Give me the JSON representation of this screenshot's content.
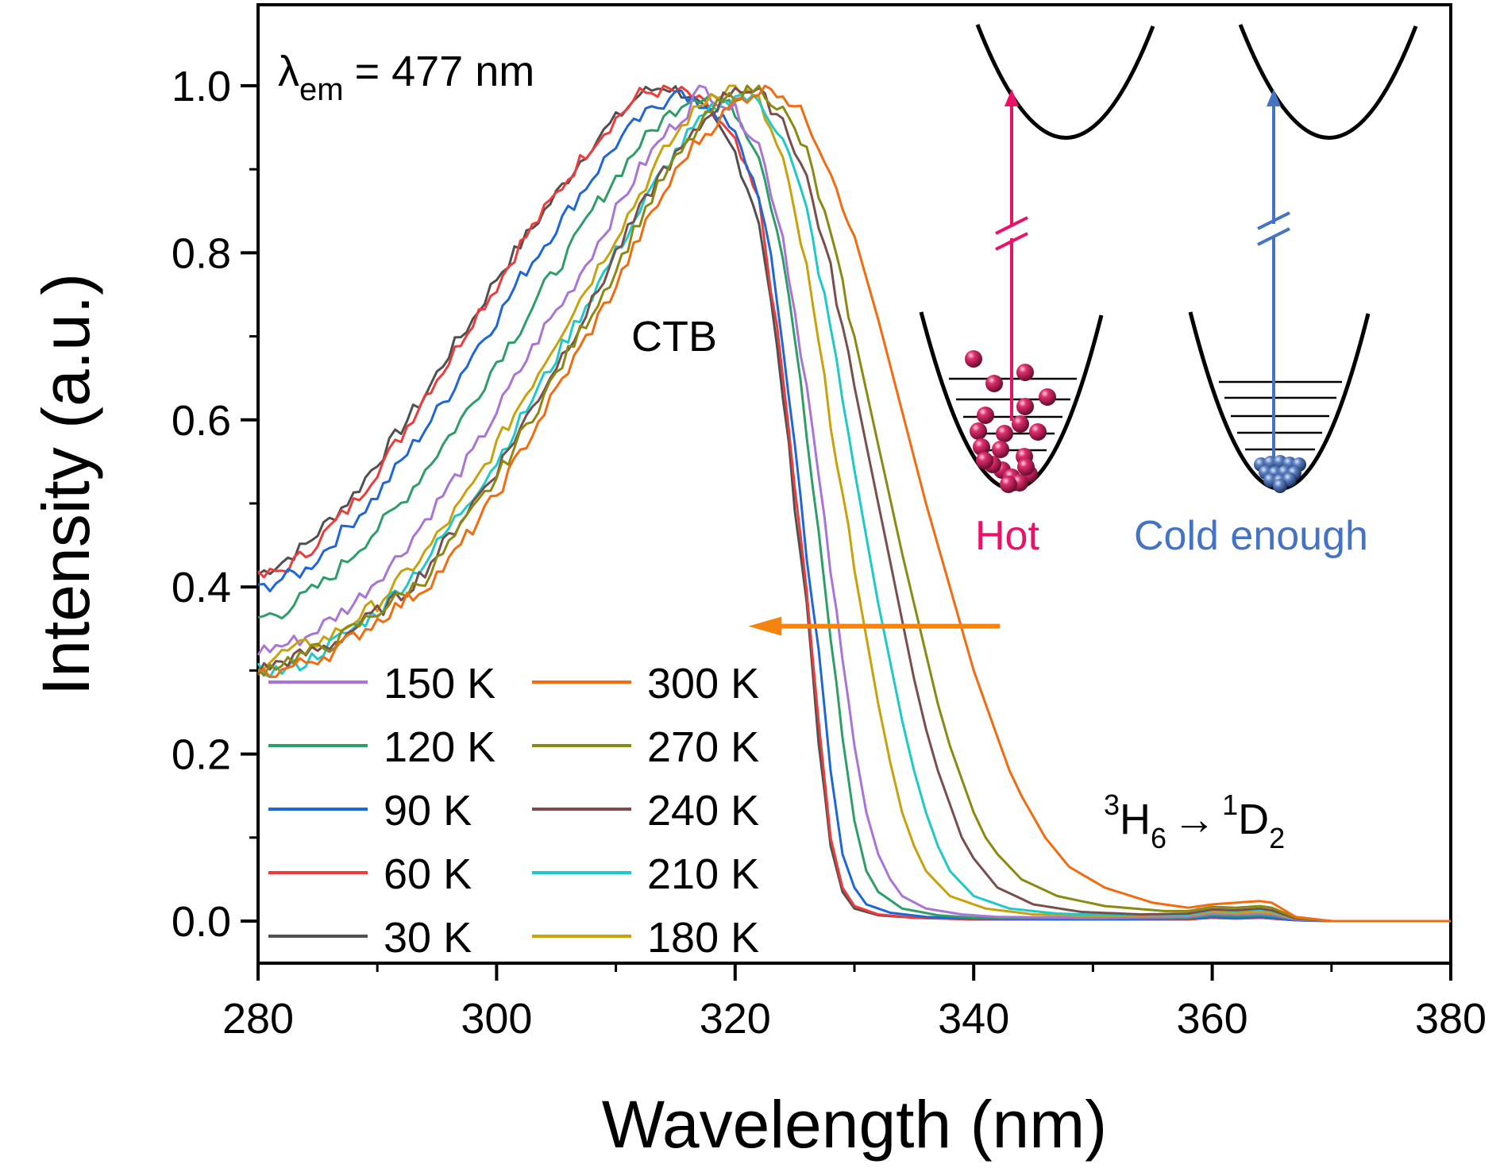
{
  "chart_data": {
    "type": "line",
    "title": "",
    "xlabel": "Wavelength (nm)",
    "ylabel": "Intensity (a.u.)",
    "xlim": [
      280,
      380
    ],
    "ylim": [
      -0.05,
      1.1
    ],
    "xticks": [
      280,
      300,
      320,
      340,
      360,
      380
    ],
    "xtick_labels": [
      "280",
      "300",
      "320",
      "340",
      "360",
      "380"
    ],
    "xminor_ticks": [
      290,
      310,
      330,
      350,
      370
    ],
    "yticks": [
      0.0,
      0.2,
      0.4,
      0.6,
      0.8,
      1.0
    ],
    "ytick_labels": [
      "0.0",
      "0.2",
      "0.4",
      "0.6",
      "0.8",
      "1.0"
    ],
    "yminor_ticks": [
      0.1,
      0.3,
      0.5,
      0.7,
      0.9
    ],
    "grid": false,
    "legend": {
      "placement": "bottom-left",
      "columns": 2,
      "order": [
        "150 K",
        "120 K",
        "90 K",
        "60 K",
        "30 K",
        "300 K",
        "270 K",
        "240 K",
        "210 K",
        "180 K"
      ]
    },
    "annotations": {
      "excitation": {
        "symbol": "λ",
        "subscript": "em",
        "text": "= 477 nm"
      },
      "band": "CTB",
      "transition": {
        "left_sup": "3",
        "left": "H",
        "left_sub": "6",
        "arrow": "→",
        "right_sup": "1",
        "right": "D",
        "right_sub": "2"
      },
      "shift_arrow": {
        "from_x": 342.2,
        "to_x": 321.1,
        "y": 0.353,
        "color": "#F5830F",
        "meaning": "blue-shift on cooling"
      }
    },
    "inset": {
      "hot_label": "Hot",
      "cold_label": "Cold enough",
      "hot_color": "#EC1167",
      "cold_color": "#4472C4"
    },
    "series": [
      {
        "name": "30 K",
        "color": "#505050",
        "x": [
          280,
          282,
          284,
          286,
          288,
          290,
          292,
          294,
          296,
          298,
          300,
          302,
          304,
          306,
          308,
          310,
          312,
          314,
          316,
          318,
          320,
          322,
          323,
          324,
          325,
          326,
          327,
          328,
          329,
          330,
          332,
          335,
          340,
          350,
          358,
          360,
          362,
          364,
          365,
          367,
          370,
          380
        ],
        "y": [
          0.415,
          0.43,
          0.45,
          0.48,
          0.51,
          0.55,
          0.59,
          0.63,
          0.68,
          0.72,
          0.77,
          0.81,
          0.85,
          0.89,
          0.93,
          0.96,
          0.99,
          1.0,
          0.99,
          0.96,
          0.92,
          0.84,
          0.74,
          0.63,
          0.5,
          0.38,
          0.22,
          0.09,
          0.035,
          0.015,
          0.007,
          0.004,
          0.002,
          0.002,
          0.002,
          0.004,
          0.003,
          0.004,
          0.003,
          0.001,
          0.0,
          0.0
        ]
      },
      {
        "name": "60 K",
        "color": "#EE3B3B",
        "x": [
          280,
          282,
          284,
          286,
          288,
          290,
          292,
          294,
          296,
          298,
          300,
          302,
          304,
          306,
          308,
          310,
          312,
          314,
          316,
          318,
          320,
          322,
          323,
          324,
          325,
          326,
          327,
          328,
          329,
          330,
          332,
          335,
          340,
          350,
          358,
          360,
          362,
          364,
          365,
          367,
          370,
          380
        ],
        "y": [
          0.41,
          0.42,
          0.44,
          0.47,
          0.5,
          0.54,
          0.58,
          0.63,
          0.67,
          0.72,
          0.76,
          0.81,
          0.85,
          0.89,
          0.93,
          0.96,
          0.99,
          0.995,
          0.99,
          0.97,
          0.93,
          0.86,
          0.76,
          0.65,
          0.52,
          0.39,
          0.24,
          0.1,
          0.04,
          0.018,
          0.008,
          0.004,
          0.002,
          0.002,
          0.002,
          0.004,
          0.003,
          0.004,
          0.003,
          0.001,
          0.0,
          0.0
        ]
      },
      {
        "name": "90 K",
        "color": "#1F66D6",
        "x": [
          280,
          282,
          284,
          286,
          288,
          290,
          292,
          294,
          296,
          298,
          300,
          302,
          304,
          306,
          308,
          310,
          312,
          314,
          315,
          316,
          318,
          320,
          322,
          323,
          324,
          325,
          326,
          327,
          328,
          329,
          330,
          331,
          333,
          336,
          340,
          350,
          358,
          360,
          362,
          364,
          365,
          367,
          370,
          380
        ],
        "y": [
          0.396,
          0.41,
          0.42,
          0.45,
          0.48,
          0.51,
          0.55,
          0.59,
          0.63,
          0.68,
          0.72,
          0.77,
          0.81,
          0.85,
          0.89,
          0.93,
          0.96,
          0.98,
          1.0,
          0.98,
          0.975,
          0.94,
          0.87,
          0.79,
          0.69,
          0.57,
          0.44,
          0.32,
          0.18,
          0.08,
          0.04,
          0.02,
          0.01,
          0.005,
          0.003,
          0.002,
          0.003,
          0.005,
          0.004,
          0.005,
          0.004,
          0.001,
          0.0,
          0.0
        ]
      },
      {
        "name": "120 K",
        "color": "#2E9E68",
        "x": [
          280,
          282,
          284,
          286,
          288,
          290,
          292,
          294,
          296,
          298,
          300,
          302,
          304,
          306,
          308,
          310,
          312,
          314,
          316,
          318,
          320,
          322,
          324,
          325,
          326,
          327,
          328,
          329,
          330,
          331,
          332,
          334,
          337,
          340,
          350,
          358,
          360,
          362,
          364,
          365,
          367,
          370,
          380
        ],
        "y": [
          0.363,
          0.37,
          0.39,
          0.41,
          0.44,
          0.47,
          0.5,
          0.54,
          0.58,
          0.62,
          0.67,
          0.71,
          0.76,
          0.8,
          0.85,
          0.89,
          0.93,
          0.96,
          0.985,
          0.99,
          0.97,
          0.92,
          0.8,
          0.7,
          0.58,
          0.46,
          0.34,
          0.22,
          0.12,
          0.06,
          0.035,
          0.015,
          0.007,
          0.004,
          0.003,
          0.004,
          0.007,
          0.006,
          0.007,
          0.006,
          0.002,
          0.0,
          0.0
        ]
      },
      {
        "name": "150 K",
        "color": "#A874D8",
        "x": [
          280,
          282,
          284,
          286,
          288,
          290,
          292,
          294,
          296,
          298,
          300,
          302,
          304,
          306,
          308,
          310,
          312,
          314,
          316,
          317,
          318,
          320,
          322,
          324,
          326,
          327,
          328,
          329,
          330,
          331,
          332,
          333,
          334,
          336,
          339,
          342,
          350,
          358,
          360,
          362,
          364,
          365,
          367,
          370,
          380
        ],
        "y": [
          0.323,
          0.33,
          0.34,
          0.36,
          0.38,
          0.41,
          0.44,
          0.48,
          0.52,
          0.56,
          0.61,
          0.66,
          0.71,
          0.75,
          0.8,
          0.85,
          0.9,
          0.94,
          0.97,
          1.0,
          0.99,
          0.97,
          0.93,
          0.82,
          0.64,
          0.53,
          0.42,
          0.31,
          0.21,
          0.13,
          0.08,
          0.05,
          0.03,
          0.015,
          0.008,
          0.005,
          0.004,
          0.005,
          0.009,
          0.008,
          0.009,
          0.008,
          0.002,
          0.0,
          0.0
        ]
      },
      {
        "name": "180 K",
        "color": "#C9A10D",
        "x": [
          280,
          282,
          284,
          286,
          288,
          290,
          292,
          294,
          296,
          298,
          300,
          302,
          304,
          306,
          308,
          310,
          312,
          314,
          316,
          318,
          320,
          322,
          324,
          326,
          328,
          329,
          330,
          331,
          332,
          333,
          334,
          335,
          336,
          338,
          341,
          345,
          350,
          358,
          360,
          362,
          364,
          365,
          367,
          370,
          380
        ],
        "y": [
          0.305,
          0.32,
          0.33,
          0.34,
          0.36,
          0.38,
          0.41,
          0.44,
          0.48,
          0.52,
          0.57,
          0.62,
          0.67,
          0.72,
          0.77,
          0.82,
          0.87,
          0.92,
          0.96,
          0.99,
          1.0,
          0.98,
          0.91,
          0.78,
          0.6,
          0.51,
          0.42,
          0.34,
          0.26,
          0.19,
          0.13,
          0.09,
          0.06,
          0.03,
          0.015,
          0.008,
          0.006,
          0.007,
          0.011,
          0.01,
          0.011,
          0.01,
          0.003,
          0.0,
          0.0
        ]
      },
      {
        "name": "210 K",
        "color": "#1DC9C9",
        "x": [
          280,
          282,
          284,
          286,
          288,
          290,
          292,
          294,
          296,
          298,
          300,
          302,
          304,
          306,
          308,
          310,
          312,
          314,
          316,
          318,
          320,
          322,
          324,
          326,
          328,
          330,
          331,
          332,
          333,
          334,
          335,
          336,
          337,
          338,
          340,
          343,
          347,
          352,
          358,
          360,
          362,
          364,
          365,
          367,
          370,
          380
        ],
        "y": [
          0.3,
          0.3,
          0.31,
          0.33,
          0.35,
          0.37,
          0.4,
          0.43,
          0.47,
          0.51,
          0.55,
          0.6,
          0.65,
          0.7,
          0.75,
          0.8,
          0.85,
          0.9,
          0.94,
          0.97,
          0.99,
          0.98,
          0.94,
          0.85,
          0.71,
          0.54,
          0.46,
          0.38,
          0.31,
          0.24,
          0.18,
          0.13,
          0.09,
          0.06,
          0.03,
          0.015,
          0.009,
          0.007,
          0.008,
          0.013,
          0.012,
          0.014,
          0.012,
          0.003,
          0.0,
          0.0
        ]
      },
      {
        "name": "240 K",
        "color": "#7A4E4A",
        "x": [
          280,
          282,
          284,
          286,
          288,
          290,
          292,
          294,
          296,
          298,
          300,
          302,
          304,
          306,
          308,
          310,
          312,
          314,
          316,
          318,
          320,
          322,
          324,
          326,
          328,
          330,
          332,
          333,
          334,
          335,
          336,
          337,
          338,
          339,
          340,
          342,
          345,
          349,
          354,
          358,
          360,
          362,
          364,
          365,
          367,
          370,
          380
        ],
        "y": [
          0.3,
          0.31,
          0.32,
          0.33,
          0.35,
          0.37,
          0.39,
          0.42,
          0.46,
          0.5,
          0.54,
          0.59,
          0.64,
          0.69,
          0.74,
          0.8,
          0.85,
          0.9,
          0.93,
          0.97,
          1.0,
          0.99,
          0.96,
          0.89,
          0.78,
          0.64,
          0.5,
          0.43,
          0.36,
          0.29,
          0.23,
          0.18,
          0.14,
          0.1,
          0.075,
          0.04,
          0.02,
          0.011,
          0.008,
          0.009,
          0.014,
          0.013,
          0.015,
          0.013,
          0.003,
          0.0,
          0.0
        ]
      },
      {
        "name": "270 K",
        "color": "#8A8A12",
        "x": [
          280,
          282,
          284,
          286,
          288,
          290,
          292,
          294,
          296,
          298,
          300,
          302,
          304,
          306,
          308,
          310,
          312,
          314,
          316,
          318,
          320,
          322,
          324,
          326,
          328,
          330,
          332,
          334,
          335,
          336,
          337,
          338,
          339,
          340,
          341,
          342,
          344,
          347,
          351,
          356,
          358,
          360,
          362,
          364,
          365,
          367,
          370,
          380
        ],
        "y": [
          0.3,
          0.31,
          0.32,
          0.33,
          0.35,
          0.37,
          0.39,
          0.41,
          0.45,
          0.49,
          0.53,
          0.58,
          0.63,
          0.68,
          0.73,
          0.78,
          0.84,
          0.89,
          0.93,
          0.97,
          0.99,
          1.0,
          0.97,
          0.92,
          0.82,
          0.7,
          0.57,
          0.44,
          0.38,
          0.32,
          0.26,
          0.21,
          0.17,
          0.13,
          0.1,
          0.08,
          0.05,
          0.03,
          0.018,
          0.012,
          0.012,
          0.017,
          0.016,
          0.018,
          0.016,
          0.004,
          0.0,
          0.0
        ]
      },
      {
        "name": "300 K",
        "color": "#F26B0F",
        "x": [
          280,
          282,
          284,
          286,
          288,
          290,
          292,
          294,
          296,
          298,
          300,
          302,
          304,
          306,
          308,
          310,
          312,
          314,
          316,
          318,
          320,
          322,
          323,
          324,
          326,
          328,
          330,
          332,
          334,
          336,
          338,
          339,
          340,
          341,
          342,
          343,
          344,
          346,
          348,
          351,
          355,
          358,
          360,
          362,
          364,
          365,
          367,
          370,
          380
        ],
        "y": [
          0.295,
          0.3,
          0.31,
          0.32,
          0.34,
          0.36,
          0.38,
          0.4,
          0.43,
          0.47,
          0.51,
          0.56,
          0.61,
          0.66,
          0.71,
          0.76,
          0.82,
          0.87,
          0.92,
          0.95,
          0.98,
          0.995,
          1.0,
          0.99,
          0.96,
          0.9,
          0.82,
          0.72,
          0.61,
          0.5,
          0.4,
          0.35,
          0.3,
          0.26,
          0.22,
          0.18,
          0.15,
          0.1,
          0.065,
          0.04,
          0.022,
          0.016,
          0.02,
          0.022,
          0.024,
          0.022,
          0.005,
          0.0,
          0.0
        ]
      }
    ]
  }
}
